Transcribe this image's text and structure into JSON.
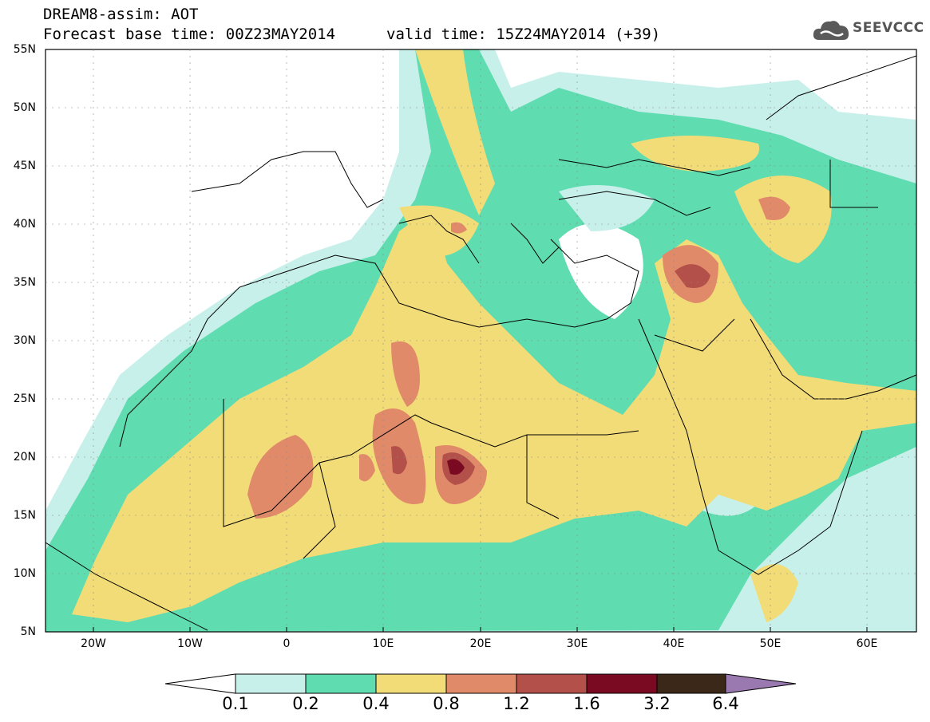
{
  "header": {
    "title": "DREAM8-assim: AOT",
    "base_time": "Forecast base time: 00Z23MAY2014",
    "valid_time": "valid time: 15Z24MAY2014 (+39)",
    "logo_text": "SEEVCCC"
  },
  "axes": {
    "lat_labels": [
      "55N",
      "50N",
      "45N",
      "40N",
      "35N",
      "30N",
      "25N",
      "20N",
      "15N",
      "10N",
      "5N"
    ],
    "lon_labels": [
      "20W",
      "10W",
      "0",
      "10E",
      "20E",
      "30E",
      "40E",
      "50E",
      "60E"
    ]
  },
  "colorbar": {
    "labels": [
      "0.1",
      "0.2",
      "0.4",
      "0.8",
      "1.2",
      "1.6",
      "3.2",
      "6.4"
    ],
    "colors": [
      "#ffffff",
      "#c8f0ea",
      "#5fdcb0",
      "#f2dc78",
      "#e08a6a",
      "#b4504a",
      "#7a0a22",
      "#3c2818",
      "#9a78b0"
    ]
  }
}
